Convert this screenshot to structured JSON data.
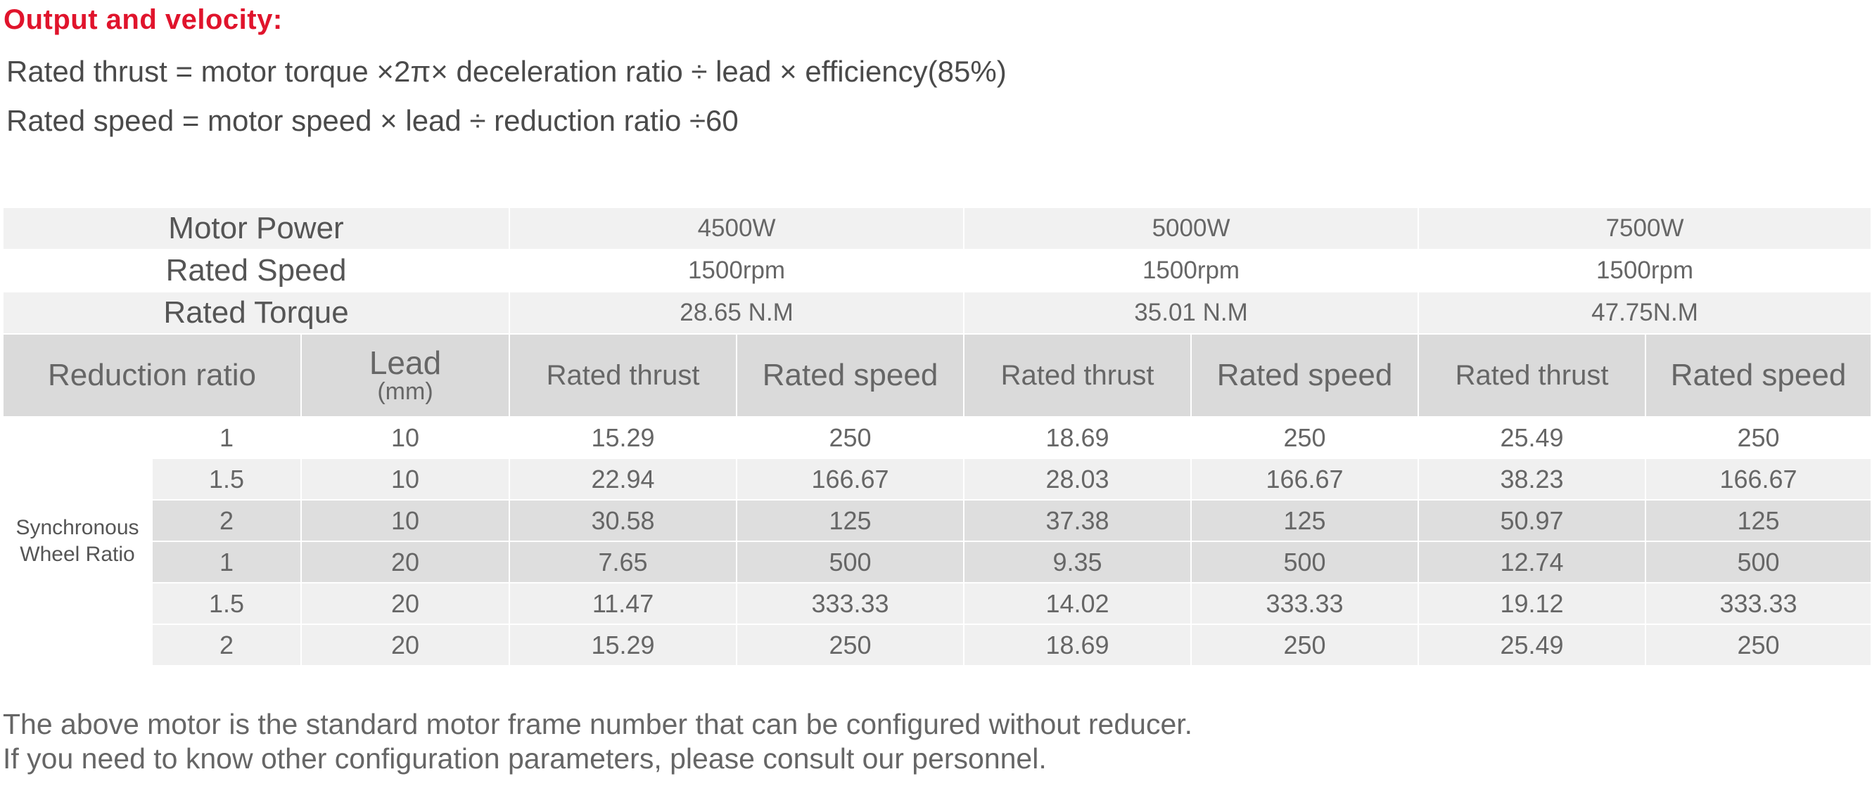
{
  "heading": "Output and velocity:",
  "formulas": [
    "Rated thrust = motor torque ×2π× deceleration ratio ÷ lead × efficiency(85%)",
    "Rated speed = motor speed × lead ÷ reduction ratio ÷60"
  ],
  "table": {
    "motor_power_label": "Motor Power",
    "rated_speed_label": "Rated Speed",
    "rated_torque_label": "Rated Torque",
    "motors": [
      {
        "power": "4500W",
        "speed": "1500rpm",
        "torque": "28.65 N.M"
      },
      {
        "power": "5000W",
        "speed": "1500rpm",
        "torque": "35.01 N.M"
      },
      {
        "power": "7500W",
        "speed": "1500rpm",
        "torque": "47.75N.M"
      }
    ],
    "headers": {
      "reduction_ratio": "Reduction ratio",
      "lead": "Lead",
      "lead_unit": "(mm)",
      "rated_thrust": "Rated thrust",
      "rated_speed": "Rated speed"
    },
    "group_label": "Synchronous Wheel Ratio",
    "rows": [
      {
        "ratio": "1",
        "lead": "10",
        "values": [
          "15.29",
          "250",
          "18.69",
          "250",
          "25.49",
          "250"
        ]
      },
      {
        "ratio": "1.5",
        "lead": "10",
        "values": [
          "22.94",
          "166.67",
          "28.03",
          "166.67",
          "38.23",
          "166.67"
        ]
      },
      {
        "ratio": "2",
        "lead": "10",
        "values": [
          "30.58",
          "125",
          "37.38",
          "125",
          "50.97",
          "125"
        ]
      },
      {
        "ratio": "1",
        "lead": "20",
        "values": [
          "7.65",
          "500",
          "9.35",
          "500",
          "12.74",
          "500"
        ]
      },
      {
        "ratio": "1.5",
        "lead": "20",
        "values": [
          "11.47",
          "333.33",
          "14.02",
          "333.33",
          "19.12",
          "333.33"
        ]
      },
      {
        "ratio": "2",
        "lead": "20",
        "values": [
          "15.29",
          "250",
          "18.69",
          "250",
          "25.49",
          "250"
        ]
      }
    ]
  },
  "notes": [
    "The above motor is the standard motor frame number that can be configured without reducer.",
    "If you need to know other configuration parameters, please consult our personnel."
  ]
}
